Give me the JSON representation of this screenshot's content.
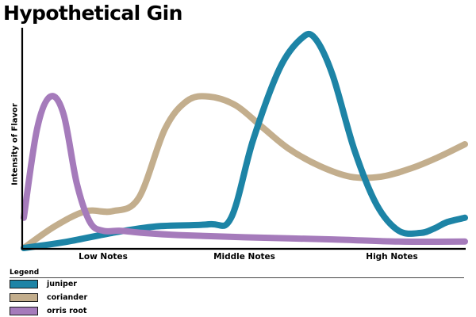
{
  "chart_data": {
    "type": "line",
    "title": "Hypothetical Gin",
    "xlabel": "",
    "ylabel": "Intensity of Flavor",
    "categories": [
      "Low Notes",
      "Middle Notes",
      "High Notes"
    ],
    "xlim": [
      0,
      100
    ],
    "ylim": [
      0,
      100
    ],
    "grid": false,
    "legend_title": "Legend",
    "legend_position": "bottom",
    "series": [
      {
        "name": "juniper",
        "color": "#1d84a6",
        "x": [
          0,
          10,
          20,
          30,
          42,
          47,
          52,
          58,
          63,
          66,
          70,
          75,
          80,
          85,
          90,
          93,
          96,
          100
        ],
        "y": [
          0,
          3,
          7,
          10,
          11,
          14,
          50,
          83,
          97,
          97,
          80,
          45,
          20,
          8,
          7,
          9,
          12,
          14
        ]
      },
      {
        "name": "coriander",
        "color": "#c3ae8d",
        "x": [
          0,
          7,
          14,
          20,
          26,
          32,
          37,
          42,
          48,
          54,
          60,
          67,
          74,
          81,
          88,
          94,
          100
        ],
        "y": [
          0,
          10,
          17,
          17,
          23,
          55,
          68,
          70,
          66,
          56,
          46,
          38,
          33,
          33,
          37,
          42,
          48
        ]
      },
      {
        "name": "orris root",
        "color": "#a57bbb",
        "x": [
          0,
          3,
          6,
          9,
          12,
          15,
          18,
          22,
          27,
          35,
          50,
          70,
          85,
          100
        ],
        "y": [
          14,
          55,
          70,
          62,
          30,
          12,
          8,
          8,
          7,
          6,
          5,
          4,
          3,
          3
        ]
      }
    ]
  }
}
